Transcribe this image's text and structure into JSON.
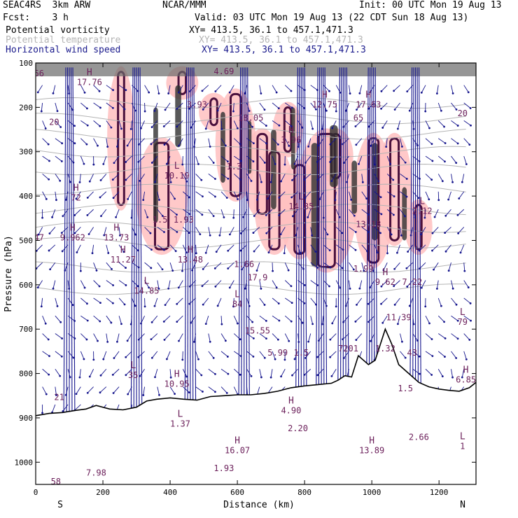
{
  "header": {
    "model": "SEAC4RS  3km ARW",
    "org": "NCAR/MMM",
    "init": "Init: 00 UTC Mon 19 Aug 13",
    "fcst": "Fcst:    3 h",
    "valid": "Valid: 03 UTC Mon 19 Aug 13 (22 CDT Sun 18 Aug 13)"
  },
  "fields": [
    {
      "name": "Potential vorticity",
      "xy": "XY= 413.5, 36.1 to 457.1,471.3",
      "color": "#000000"
    },
    {
      "name": "Potential temperature",
      "xy": "XY= 413.5, 36.1 to 457.1,471.3",
      "color": "#b4b4b4"
    },
    {
      "name": "Horizontal wind speed",
      "xy": "XY= 413.5, 36.1 to 457.1,471.3",
      "color": "#1a1a8c"
    }
  ],
  "chart_data": {
    "type": "cross-section",
    "xlabel": "Distance (km)",
    "ylabel": "Pressure (hPa)",
    "xlim": [
      0,
      1310
    ],
    "ylim": [
      100,
      1050
    ],
    "x_ticks": [
      0,
      200,
      400,
      600,
      800,
      1000,
      1200
    ],
    "y_ticks": [
      100,
      200,
      300,
      400,
      500,
      600,
      700,
      800,
      900,
      1000
    ],
    "left_end": "S",
    "right_end": "N",
    "colors": {
      "pv_pink": "#ffc0c0",
      "pv_dark": "#4a0f3c",
      "core": "#303030",
      "wind": "#14148c",
      "theta": "#b4b4b4",
      "hl": "#6b1f5a"
    },
    "terrain": [
      [
        0,
        895
      ],
      [
        40,
        890
      ],
      [
        80,
        888
      ],
      [
        120,
        883
      ],
      [
        150,
        880
      ],
      [
        180,
        872
      ],
      [
        220,
        880
      ],
      [
        260,
        882
      ],
      [
        300,
        876
      ],
      [
        330,
        862
      ],
      [
        360,
        858
      ],
      [
        400,
        855
      ],
      [
        440,
        858
      ],
      [
        480,
        860
      ],
      [
        520,
        852
      ],
      [
        560,
        850
      ],
      [
        600,
        848
      ],
      [
        640,
        848
      ],
      [
        680,
        845
      ],
      [
        720,
        840
      ],
      [
        760,
        832
      ],
      [
        800,
        828
      ],
      [
        840,
        825
      ],
      [
        880,
        822
      ],
      [
        900,
        815
      ],
      [
        920,
        805
      ],
      [
        940,
        808
      ],
      [
        960,
        760
      ],
      [
        990,
        780
      ],
      [
        1010,
        770
      ],
      [
        1040,
        700
      ],
      [
        1060,
        735
      ],
      [
        1080,
        780
      ],
      [
        1110,
        800
      ],
      [
        1140,
        820
      ],
      [
        1170,
        830
      ],
      [
        1200,
        835
      ],
      [
        1230,
        838
      ],
      [
        1260,
        840
      ],
      [
        1290,
        832
      ],
      [
        1310,
        820
      ]
    ],
    "theta_levels": [
      190,
      225,
      260,
      300,
      340,
      385,
      430,
      470,
      505,
      560,
      610
    ],
    "pv_cells": [
      [
        355,
        280,
        40,
        240
      ],
      [
        245,
        120,
        18,
        300
      ],
      [
        425,
        120,
        22,
        50
      ],
      [
        520,
        180,
        20,
        60
      ],
      [
        580,
        170,
        30,
        230
      ],
      [
        660,
        260,
        28,
        180
      ],
      [
        695,
        300,
        30,
        220
      ],
      [
        740,
        200,
        20,
        100
      ],
      [
        770,
        330,
        30,
        200
      ],
      [
        840,
        260,
        50,
        300
      ],
      [
        880,
        260,
        25,
        100
      ],
      [
        990,
        270,
        30,
        280
      ],
      [
        1055,
        270,
        25,
        230
      ],
      [
        1130,
        420,
        18,
        100
      ]
    ],
    "core_cells": [
      [
        350,
        200,
        14,
        260
      ],
      [
        415,
        150,
        18,
        140
      ],
      [
        550,
        210,
        14,
        160
      ],
      [
        630,
        230,
        12,
        120
      ],
      [
        700,
        250,
        16,
        180
      ],
      [
        760,
        200,
        12,
        140
      ],
      [
        820,
        280,
        20,
        280
      ],
      [
        875,
        240,
        24,
        140
      ],
      [
        940,
        320,
        16,
        120
      ],
      [
        1000,
        280,
        18,
        220
      ],
      [
        1090,
        380,
        14,
        120
      ]
    ],
    "wind_columns": [
      {
        "x": 100,
        "len": 70
      },
      {
        "x": 300,
        "len": 150
      },
      {
        "x": 460,
        "len": 120
      },
      {
        "x": 620,
        "len": 130
      },
      {
        "x": 790,
        "len": 110
      },
      {
        "x": 850,
        "len": 220
      },
      {
        "x": 915,
        "len": 120
      },
      {
        "x": 1000,
        "len": 190
      },
      {
        "x": 1130,
        "len": 60
      }
    ],
    "markers": [
      {
        "x": 160,
        "p": 150,
        "t": "H",
        "v": "17.76"
      },
      {
        "x": 55,
        "p": 240,
        "t": "",
        "v": "20"
      },
      {
        "x": 120,
        "p": 410,
        "t": "H",
        "v": "72"
      },
      {
        "x": 110,
        "p": 500,
        "t": "H",
        "v": "9.962"
      },
      {
        "x": 240,
        "p": 500,
        "t": "H",
        "v": "13.73"
      },
      {
        "x": 260,
        "p": 550,
        "t": "H",
        "v": "11.27"
      },
      {
        "x": 420,
        "p": 360,
        "t": "L",
        "v": "10.19"
      },
      {
        "x": 440,
        "p": 460,
        "t": "",
        "v": "1.93"
      },
      {
        "x": 460,
        "p": 550,
        "t": "H",
        "v": "13.48"
      },
      {
        "x": 330,
        "p": 620,
        "t": "L",
        "v": "14.85"
      },
      {
        "x": 480,
        "p": 200,
        "t": "",
        "v": "3.93"
      },
      {
        "x": 640,
        "p": 230,
        "t": "",
        "v": "18.05"
      },
      {
        "x": 590,
        "p": 340,
        "t": "",
        "v": "1.3"
      },
      {
        "x": 600,
        "p": 650,
        "t": "L",
        "v": "84"
      },
      {
        "x": 620,
        "p": 560,
        "t": "",
        "v": "1.66"
      },
      {
        "x": 660,
        "p": 590,
        "t": "",
        "v": "17.9"
      },
      {
        "x": 660,
        "p": 710,
        "t": "",
        "v": "15.55"
      },
      {
        "x": 760,
        "p": 280,
        "t": "H",
        "v": "3.96"
      },
      {
        "x": 790,
        "p": 430,
        "t": "L",
        "v": "14.85"
      },
      {
        "x": 860,
        "p": 200,
        "t": "H",
        "v": "12.75"
      },
      {
        "x": 990,
        "p": 200,
        "t": "H",
        "v": "17.63"
      },
      {
        "x": 960,
        "p": 230,
        "t": "",
        "v": "65"
      },
      {
        "x": 990,
        "p": 470,
        "t": "",
        "v": "13.18"
      },
      {
        "x": 975,
        "p": 570,
        "t": "",
        "v": "1.99"
      },
      {
        "x": 1040,
        "p": 600,
        "t": "H",
        "v": "9.62"
      },
      {
        "x": 1080,
        "p": 680,
        "t": "",
        "v": "11.39"
      },
      {
        "x": 1150,
        "p": 440,
        "t": "L",
        "v": "2.12"
      },
      {
        "x": 1120,
        "p": 600,
        "t": "",
        "v": "7.22"
      },
      {
        "x": 1120,
        "p": 760,
        "t": "",
        "v": "43"
      },
      {
        "x": 1040,
        "p": 750,
        "t": "",
        "v": "1.32"
      },
      {
        "x": 930,
        "p": 750,
        "t": "",
        "v": "7201"
      },
      {
        "x": 790,
        "p": 760,
        "t": "",
        "v": "1.5"
      },
      {
        "x": 720,
        "p": 760,
        "t": "",
        "v": "5.99"
      },
      {
        "x": 370,
        "p": 460,
        "t": "",
        "v": "1.5"
      },
      {
        "x": 290,
        "p": 810,
        "t": "L",
        "v": "35"
      },
      {
        "x": 420,
        "p": 830,
        "t": "H",
        "v": "10.95"
      },
      {
        "x": 430,
        "p": 920,
        "t": "L",
        "v": "1.37"
      },
      {
        "x": 70,
        "p": 860,
        "t": "",
        "v": "21"
      },
      {
        "x": 60,
        "p": 1050,
        "t": "",
        "v": "58"
      },
      {
        "x": 180,
        "p": 1030,
        "t": "",
        "v": "7.98"
      },
      {
        "x": 760,
        "p": 890,
        "t": "H",
        "v": "4.90"
      },
      {
        "x": 780,
        "p": 930,
        "t": "",
        "v": "2.20"
      },
      {
        "x": 600,
        "p": 980,
        "t": "H",
        "v": "16.07"
      },
      {
        "x": 560,
        "p": 1020,
        "t": "",
        "v": "1.93"
      },
      {
        "x": 1000,
        "p": 980,
        "t": "H",
        "v": "13.89"
      },
      {
        "x": 1140,
        "p": 950,
        "t": "",
        "v": "2.66"
      },
      {
        "x": 1280,
        "p": 820,
        "t": "H",
        "v": "6.85"
      },
      {
        "x": 1270,
        "p": 970,
        "t": "L",
        "v": "1"
      },
      {
        "x": 1270,
        "p": 690,
        "t": "L",
        "v": "79"
      },
      {
        "x": 1100,
        "p": 840,
        "t": "",
        "v": "1.5"
      },
      {
        "x": 10,
        "p": 130,
        "t": "",
        "v": "56"
      },
      {
        "x": 10,
        "p": 500,
        "t": "",
        "v": "47"
      },
      {
        "x": 560,
        "p": 125,
        "t": "",
        "v": "4.69"
      },
      {
        "x": 1270,
        "p": 220,
        "t": "",
        "v": "20"
      }
    ]
  }
}
